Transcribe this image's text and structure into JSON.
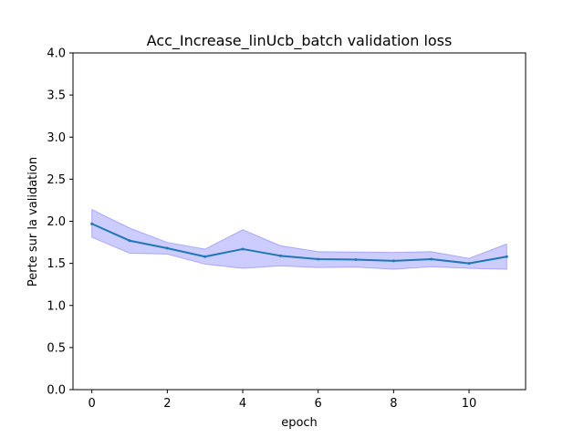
{
  "chart_data": {
    "type": "line",
    "title": "Acc_Increase_linUcb_batch validation loss",
    "xlabel": "epoch",
    "ylabel": "Perte sur la validation",
    "xlim": [
      -0.5,
      11.5
    ],
    "ylim": [
      0.0,
      4.0
    ],
    "xticks": [
      0,
      2,
      4,
      6,
      8,
      10
    ],
    "xtick_labels": [
      "0",
      "2",
      "4",
      "6",
      "8",
      "10"
    ],
    "yticks": [
      0.0,
      0.5,
      1.0,
      1.5,
      2.0,
      2.5,
      3.0,
      3.5,
      4.0
    ],
    "ytick_labels": [
      "0.0",
      "0.5",
      "1.0",
      "1.5",
      "2.0",
      "2.5",
      "3.0",
      "3.5",
      "4.0"
    ],
    "grid": false,
    "series": [
      {
        "x": [
          0,
          1,
          2,
          3,
          4,
          5,
          6,
          7,
          8,
          9,
          10,
          11
        ],
        "values": [
          1.97,
          1.77,
          1.68,
          1.58,
          1.67,
          1.59,
          1.55,
          1.545,
          1.53,
          1.55,
          1.5,
          1.58
        ],
        "band_upper": [
          2.14,
          1.92,
          1.75,
          1.67,
          1.9,
          1.71,
          1.64,
          1.635,
          1.63,
          1.64,
          1.56,
          1.73
        ],
        "band_lower": [
          1.81,
          1.62,
          1.61,
          1.49,
          1.44,
          1.47,
          1.45,
          1.455,
          1.43,
          1.46,
          1.44,
          1.43
        ],
        "color": "#1f77b4",
        "band_color": "#0000ff"
      }
    ]
  }
}
